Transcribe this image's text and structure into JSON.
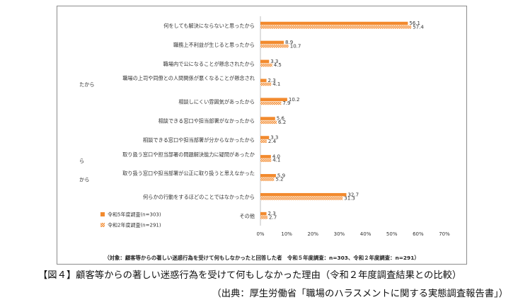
{
  "chart_data": {
    "type": "bar",
    "orientation": "horizontal",
    "categories": [
      "何をしても解決にならないと思ったから",
      "職務上不利益が生じると思ったから",
      "職場内で公になることが懸念されたから",
      "職場の上司や同僚との人間関係が悪くなることが懸念されたから",
      "相談しにくい雰囲気があったから",
      "相談できる窓口や担当部署がなかったから",
      "相談できる窓口や担当部署が分からなかったから",
      "取り扱う窓口や担当部署の問題解決能力に疑問があったから",
      "取り扱う窓口や担当部署が公正に取り扱うと思えなかったから",
      "何らかの行動をするほどのことではなかったから",
      "その他"
    ],
    "series": [
      {
        "name": "令和5年度調査(n=303)",
        "color": "#f28a2e",
        "pattern": "solid",
        "values": [
          56.1,
          8.9,
          3.3,
          2.3,
          10.2,
          5.6,
          3.3,
          4.0,
          5.9,
          32.7,
          2.3
        ]
      },
      {
        "name": "令和2年度調査(n=291)",
        "color": "#f28a2e",
        "pattern": "checker",
        "values": [
          57.4,
          10.7,
          4.5,
          4.1,
          7.9,
          6.2,
          2.4,
          4.1,
          5.2,
          31.3,
          2.7
        ]
      }
    ],
    "xlim": [
      0,
      70
    ],
    "xticks": [
      "0%",
      "10%",
      "20%",
      "30%",
      "40%",
      "50%",
      "60%",
      "70%"
    ],
    "grid": false,
    "legend": "bottom-left",
    "note": "（対象：顧客等からの著しい迷惑行為を受けて何もしなかったと回答した者　令和５年度調査：n=303、令和２年度調査：n=291）"
  },
  "caption": "【図４】顧客等からの著しい迷惑行為を受けて何もしなかった理由（令和２年度調査結果との比較）",
  "source": "（出典：厚生労働省「職場のハラスメントに関する実態調査報告書」）"
}
